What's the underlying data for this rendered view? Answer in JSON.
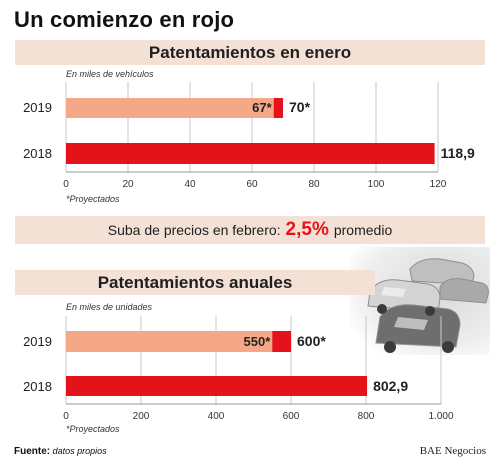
{
  "header": {
    "title": "Un comienzo en rojo"
  },
  "chart_data": [
    {
      "type": "bar",
      "orientation": "horizontal",
      "title": "Patentamientos en enero",
      "unit_note": "En miles de vehículos",
      "footnote": "*Proyectados",
      "categories": [
        "2019",
        "2018"
      ],
      "bars": [
        {
          "category": "2019",
          "segments": [
            {
              "value": 67,
              "label": "67*",
              "color": "#f4a888"
            },
            {
              "value": 70,
              "label": "70*",
              "color": "#e3121b"
            }
          ]
        },
        {
          "category": "2018",
          "segments": [
            {
              "value": 118.9,
              "label": "118,9",
              "color": "#e3121b"
            }
          ]
        }
      ],
      "xlim": [
        0,
        120
      ],
      "xticks": [
        "0",
        "20",
        "40",
        "60",
        "80",
        "100",
        "120"
      ],
      "xtick_values": [
        0,
        20,
        40,
        60,
        80,
        100,
        120
      ],
      "grid": true
    },
    {
      "type": "bar",
      "orientation": "horizontal",
      "title": "Patentamientos anuales",
      "unit_note": "En miles de unidades",
      "footnote": "*Proyectados",
      "categories": [
        "2019",
        "2018"
      ],
      "bars": [
        {
          "category": "2019",
          "segments": [
            {
              "value": 550,
              "label": "550*",
              "color": "#f4a888"
            },
            {
              "value": 600,
              "label": "600*",
              "color": "#e3121b"
            }
          ]
        },
        {
          "category": "2018",
          "segments": [
            {
              "value": 802.9,
              "label": "802,9",
              "color": "#e3121b"
            }
          ]
        }
      ],
      "xlim": [
        0,
        1000
      ],
      "xticks": [
        "0",
        "200",
        "400",
        "600",
        "800",
        "1.000"
      ],
      "xtick_values": [
        0,
        200,
        400,
        600,
        800,
        1000
      ],
      "grid": true
    }
  ],
  "price_band": {
    "text_before": "Suba de precios en febrero:",
    "highlight": "2,5%",
    "text_after": "promedio"
  },
  "footer": {
    "source_label": "Fuente:",
    "source_value": "datos propios",
    "brand": "BAE Negocios"
  },
  "colors": {
    "accent_red": "#e3121b",
    "projected_salmon": "#f4a888",
    "band_background": "#f3e1d6"
  }
}
